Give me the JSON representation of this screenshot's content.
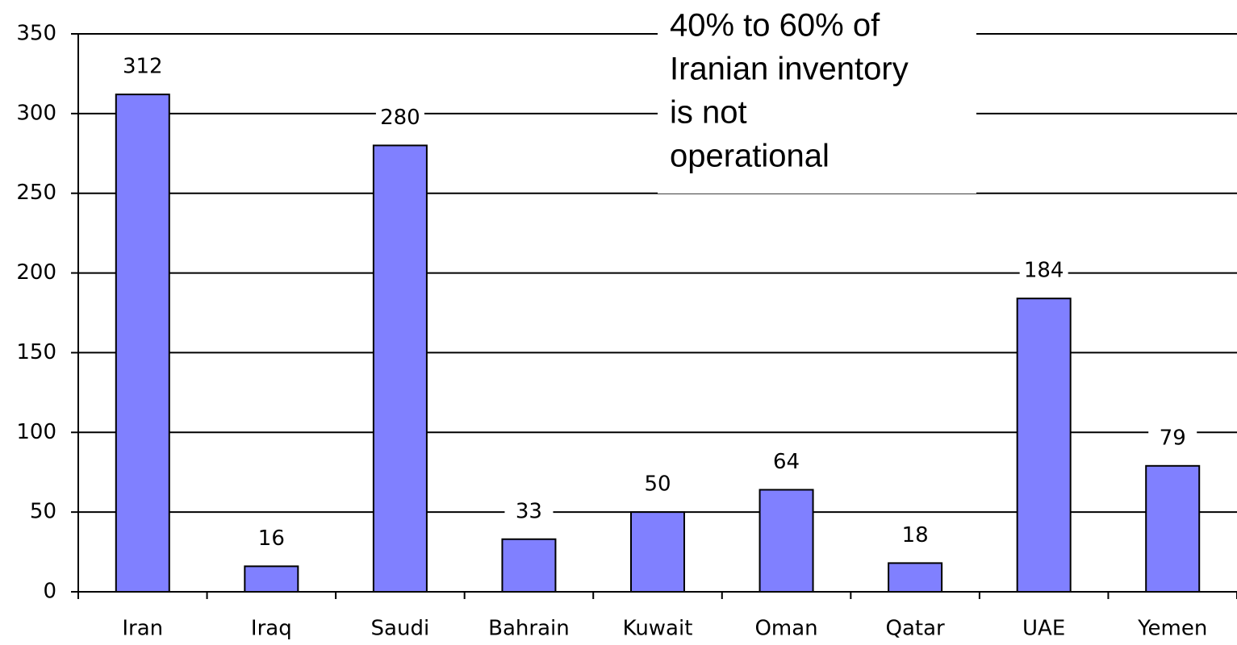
{
  "chart_data": {
    "type": "bar",
    "categories": [
      "Iran",
      "Iraq",
      "Saudi",
      "Bahrain",
      "Kuwait",
      "Oman",
      "Qatar",
      "UAE",
      "Yemen"
    ],
    "values": [
      312,
      16,
      280,
      33,
      50,
      64,
      18,
      184,
      79
    ],
    "color": "#8080ff",
    "ylim": [
      0,
      350
    ],
    "yticks": [
      0,
      50,
      100,
      150,
      200,
      250,
      300,
      350
    ],
    "grid": true,
    "annotation": [
      "40% to 60% of",
      "Iranian inventory",
      "is not",
      "operational"
    ]
  }
}
